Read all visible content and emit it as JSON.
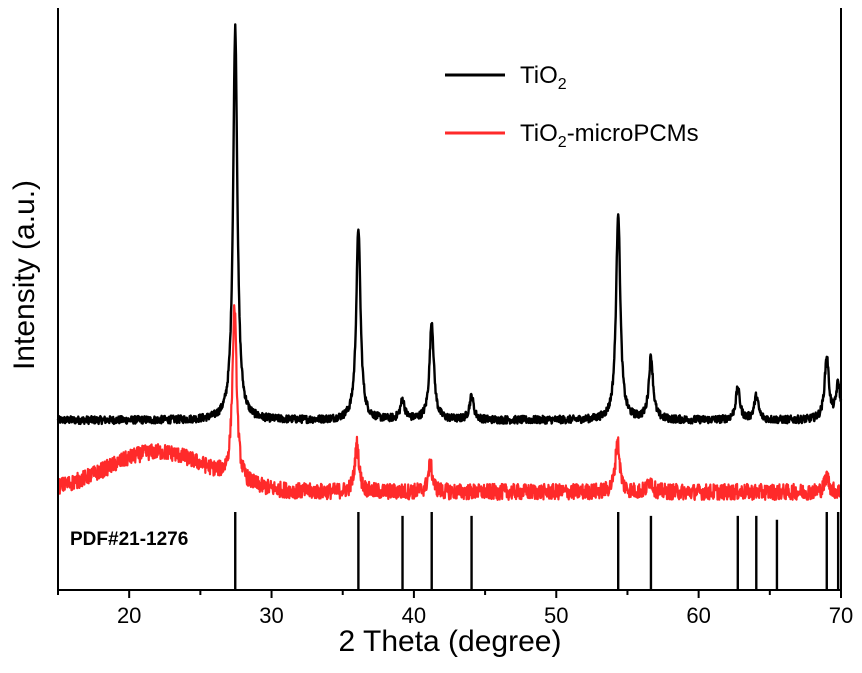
{
  "chart_data": {
    "type": "line",
    "title": "",
    "xlabel": "2 Theta (degree)",
    "ylabel": "Intensity (a.u.)",
    "xlim": [
      15,
      70
    ],
    "xticks": [
      "20",
      "30",
      "40",
      "50",
      "60",
      "70"
    ],
    "yticks": [],
    "legend_position": "top-right",
    "grid": false,
    "series": [
      {
        "name": "TiO2",
        "name_main": "TiO",
        "name_sub": "2",
        "name_rest": "",
        "color": "#000000",
        "baseline": 0.03,
        "noise": 0.01,
        "peaks": [
          {
            "x": 27.45,
            "h": 1.0
          },
          {
            "x": 36.1,
            "h": 0.49
          },
          {
            "x": 39.2,
            "h": 0.05
          },
          {
            "x": 41.25,
            "h": 0.25
          },
          {
            "x": 44.05,
            "h": 0.06
          },
          {
            "x": 54.35,
            "h": 0.53
          },
          {
            "x": 56.65,
            "h": 0.16
          },
          {
            "x": 62.75,
            "h": 0.08
          },
          {
            "x": 64.05,
            "h": 0.06
          },
          {
            "x": 69.0,
            "h": 0.16
          },
          {
            "x": 69.8,
            "h": 0.09
          }
        ]
      },
      {
        "name": "TiO2-microPCMs",
        "name_main": "TiO",
        "name_sub": "2",
        "name_rest": "-microPCMs",
        "color": "#ff2a2a",
        "baseline": 0.02,
        "noise": 0.02,
        "hump": {
          "x": 22,
          "width": 5,
          "h": 0.1
        },
        "peaks": [
          {
            "x": 27.4,
            "h": 0.43
          },
          {
            "x": 36.0,
            "h": 0.12
          },
          {
            "x": 41.15,
            "h": 0.07
          },
          {
            "x": 54.3,
            "h": 0.13
          },
          {
            "x": 56.6,
            "h": 0.03
          },
          {
            "x": 69.0,
            "h": 0.04
          }
        ]
      }
    ],
    "reference": {
      "label": "PDF#21-1276",
      "lines": [
        27.45,
        36.1,
        39.2,
        41.25,
        44.05,
        54.35,
        56.65,
        62.75,
        64.05,
        65.5,
        69.0,
        69.8
      ],
      "heights": [
        1,
        1,
        0.95,
        1,
        0.95,
        1,
        0.95,
        0.95,
        0.95,
        0.9,
        1,
        1
      ]
    }
  }
}
